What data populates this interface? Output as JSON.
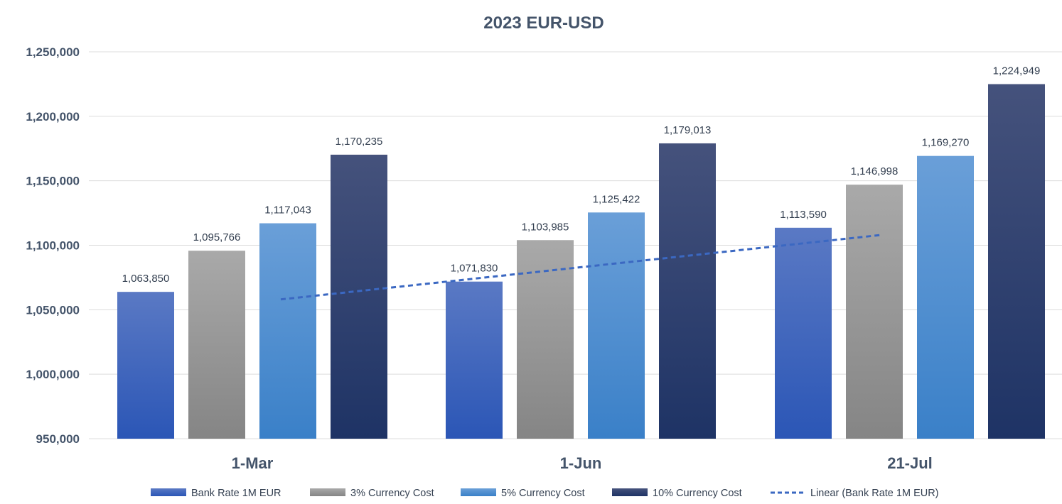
{
  "chart_data": {
    "type": "bar",
    "title": "2023 EUR-USD",
    "categories": [
      "1-Mar",
      "1-Jun",
      "21-Jul"
    ],
    "series": [
      {
        "name": "Bank Rate 1M EUR",
        "values": [
          1063850,
          1071830,
          1113590
        ],
        "labels": [
          "1,063,850",
          "1,071,830",
          "1,113,590"
        ],
        "color_top": "#5a79c4",
        "color_bottom": "#2b56b6"
      },
      {
        "name": "3% Currency Cost",
        "values": [
          1095766,
          1103985,
          1146998
        ],
        "labels": [
          "1,095,766",
          "1,103,985",
          "1,146,998"
        ],
        "color_top": "#a9a9a9",
        "color_bottom": "#858585"
      },
      {
        "name": "5% Currency Cost",
        "values": [
          1117043,
          1125422,
          1169270
        ],
        "labels": [
          "1,117,043",
          "1,125,422",
          "1,169,270"
        ],
        "color_top": "#6a9fd8",
        "color_bottom": "#3a80c8"
      },
      {
        "name": "10% Currency Cost",
        "values": [
          1170235,
          1179013,
          1224949
        ],
        "labels": [
          "1,170,235",
          "1,179,013",
          "1,224,949"
        ],
        "color_top": "#45527c",
        "color_bottom": "#1e3365"
      }
    ],
    "trendline": {
      "name": "Linear (Bank Rate 1M EUR)",
      "series": "Bank Rate 1M EUR",
      "start_value": 1058000,
      "end_value": 1108000,
      "color": "#3b68c2"
    },
    "yaxis": {
      "min": 950000,
      "max": 1250000,
      "ticks": [
        950000,
        1000000,
        1050000,
        1100000,
        1150000,
        1200000,
        1250000
      ],
      "tick_labels": [
        "950,000",
        "1,000,000",
        "1,050,000",
        "1,100,000",
        "1,150,000",
        "1,200,000",
        "1,250,000"
      ]
    },
    "grid": true,
    "legend": "bottom",
    "xlabel": "",
    "ylabel": ""
  }
}
